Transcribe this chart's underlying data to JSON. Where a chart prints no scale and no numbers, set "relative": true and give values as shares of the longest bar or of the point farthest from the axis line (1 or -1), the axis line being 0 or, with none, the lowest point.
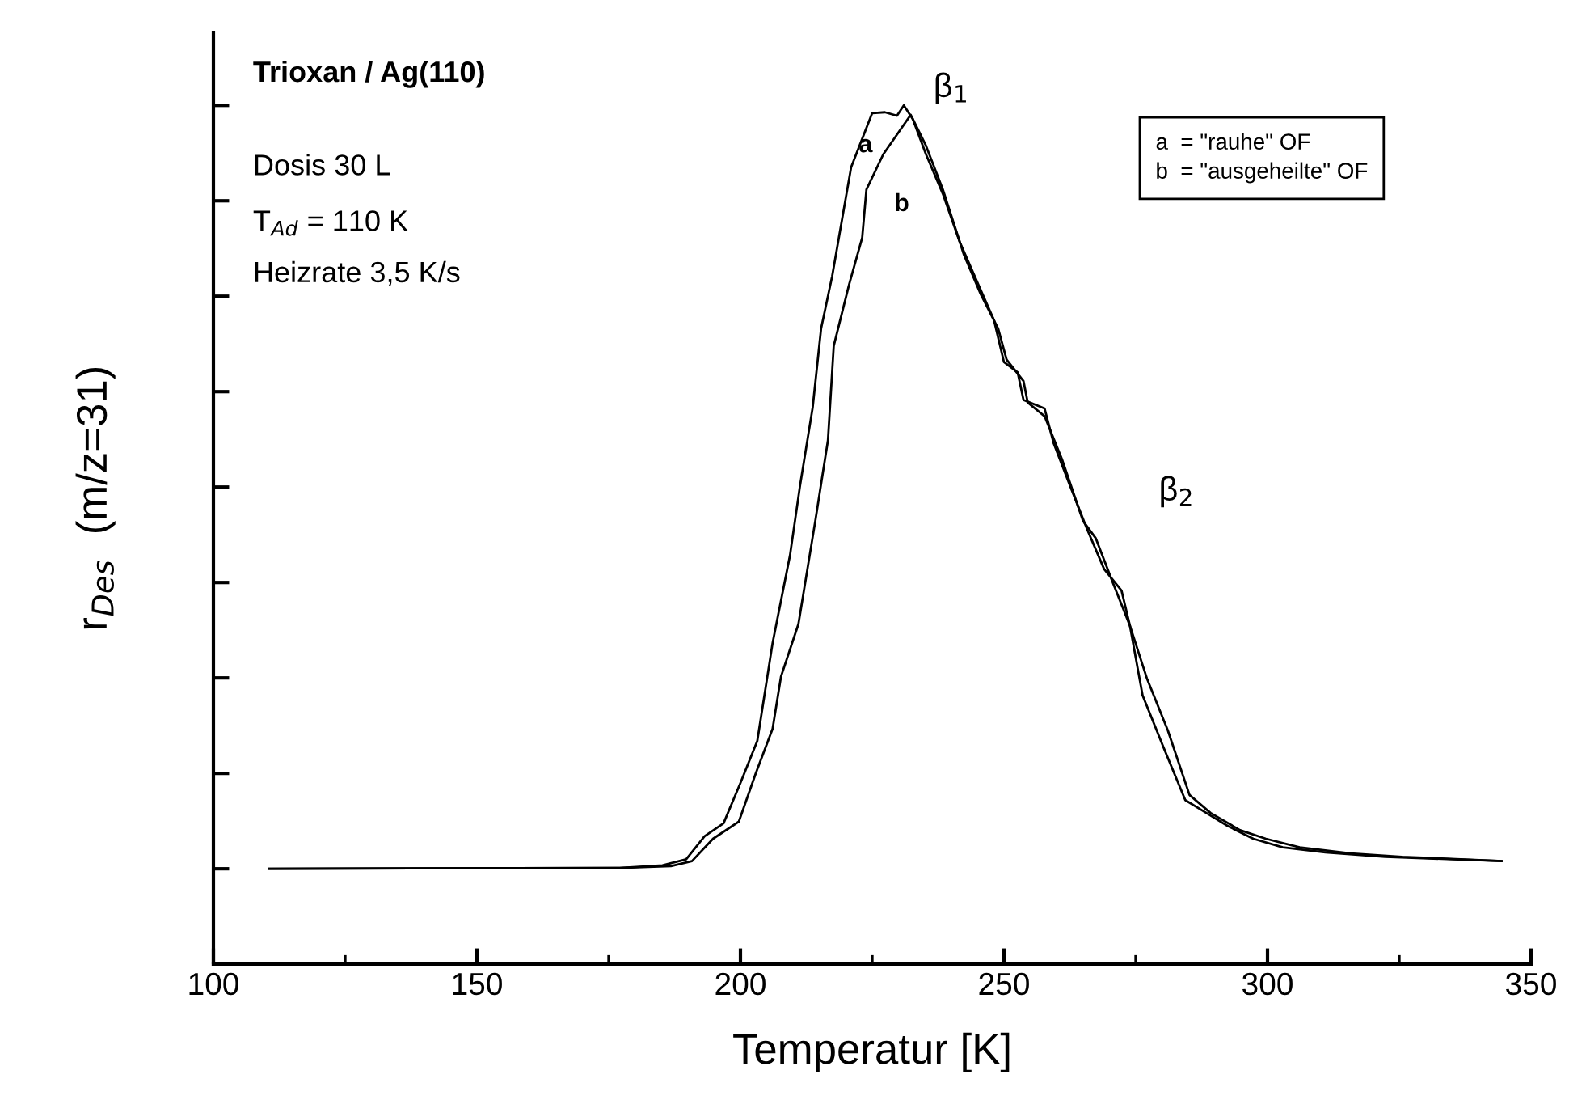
{
  "chart_data": {
    "type": "line",
    "relative": true,
    "title": "Trioxan / Ag(110)",
    "xlabel": "Temperatur [K]",
    "ylabel": "r$_{Des}$  (m/z=31)",
    "xlim": [
      100,
      350
    ],
    "xticks": [
      100,
      {
        "value": 125,
        "label": null
      },
      150,
      {
        "value": 175,
        "label": null
      },
      200,
      {
        "value": 225,
        "label": null
      },
      250,
      {
        "value": 275,
        "label": null
      },
      300,
      {
        "value": 325,
        "label": null
      },
      350
    ],
    "grid": false,
    "legend": false,
    "marker": "none",
    "line_style": "solid",
    "annotations": [
      "Dosis 30 L",
      "T$_{Ad}$ = 110 K",
      "Heizrate 3,5 K/s",
      "a  = \"rauhe\" OF\nb  = \"ausgeheilte\" OF",
      "β$_{1}$",
      "β$_{2}$"
    ],
    "series": [
      {
        "name": "a",
        "color": "#000000",
        "x": [
          110.6,
          177.1,
          185.2,
          189.7,
          193.2,
          196.8,
          200.0,
          203.2,
          206.1,
          209.4,
          211.3,
          213.7,
          215.3,
          217.4,
          221.0,
          225.0,
          227.4,
          229.7,
          231.0,
          232.7,
          235.2,
          238.4,
          241.6,
          244.8,
          248.1,
          250.0,
          252.6,
          253.7,
          257.7,
          259.4,
          262.6,
          265.8,
          269.0,
          272.3,
          273.9,
          276.3,
          280.3,
          284.4,
          288.4,
          292.4,
          297.3,
          302.9,
          311.0,
          322.3,
          335.2,
          344.4
        ],
        "values": [
          0.111,
          0.112,
          0.115,
          0.122,
          0.149,
          0.164,
          0.211,
          0.26,
          0.374,
          0.476,
          0.557,
          0.648,
          0.74,
          0.801,
          0.928,
          0.991,
          0.992,
          0.988,
          1.0,
          0.984,
          0.943,
          0.897,
          0.841,
          0.796,
          0.75,
          0.701,
          0.689,
          0.657,
          0.647,
          0.607,
          0.556,
          0.506,
          0.46,
          0.435,
          0.394,
          0.313,
          0.252,
          0.191,
          0.176,
          0.161,
          0.146,
          0.136,
          0.13,
          0.125,
          0.122,
          0.12
        ]
      },
      {
        "name": "b",
        "color": "#000000",
        "x": [
          110.6,
          177.1,
          186.8,
          190.8,
          194.8,
          199.7,
          202.9,
          206.1,
          207.7,
          211.0,
          214.2,
          216.6,
          217.7,
          220.6,
          223.1,
          223.9,
          227.1,
          232.3,
          235.2,
          238.4,
          242.4,
          245.6,
          248.9,
          250.5,
          253.7,
          254.5,
          257.7,
          261.0,
          265.0,
          267.4,
          270.6,
          273.9,
          277.1,
          281.1,
          285.2,
          289.2,
          294.8,
          299.7,
          306.1,
          315.8,
          325.5,
          344.4
        ],
        "values": [
          0.111,
          0.112,
          0.114,
          0.12,
          0.146,
          0.166,
          0.222,
          0.274,
          0.335,
          0.396,
          0.516,
          0.61,
          0.72,
          0.791,
          0.846,
          0.902,
          0.943,
          0.989,
          0.953,
          0.902,
          0.826,
          0.78,
          0.74,
          0.704,
          0.679,
          0.654,
          0.638,
          0.588,
          0.516,
          0.496,
          0.445,
          0.394,
          0.333,
          0.272,
          0.197,
          0.176,
          0.156,
          0.146,
          0.136,
          0.129,
          0.125,
          0.12
        ]
      }
    ]
  }
}
